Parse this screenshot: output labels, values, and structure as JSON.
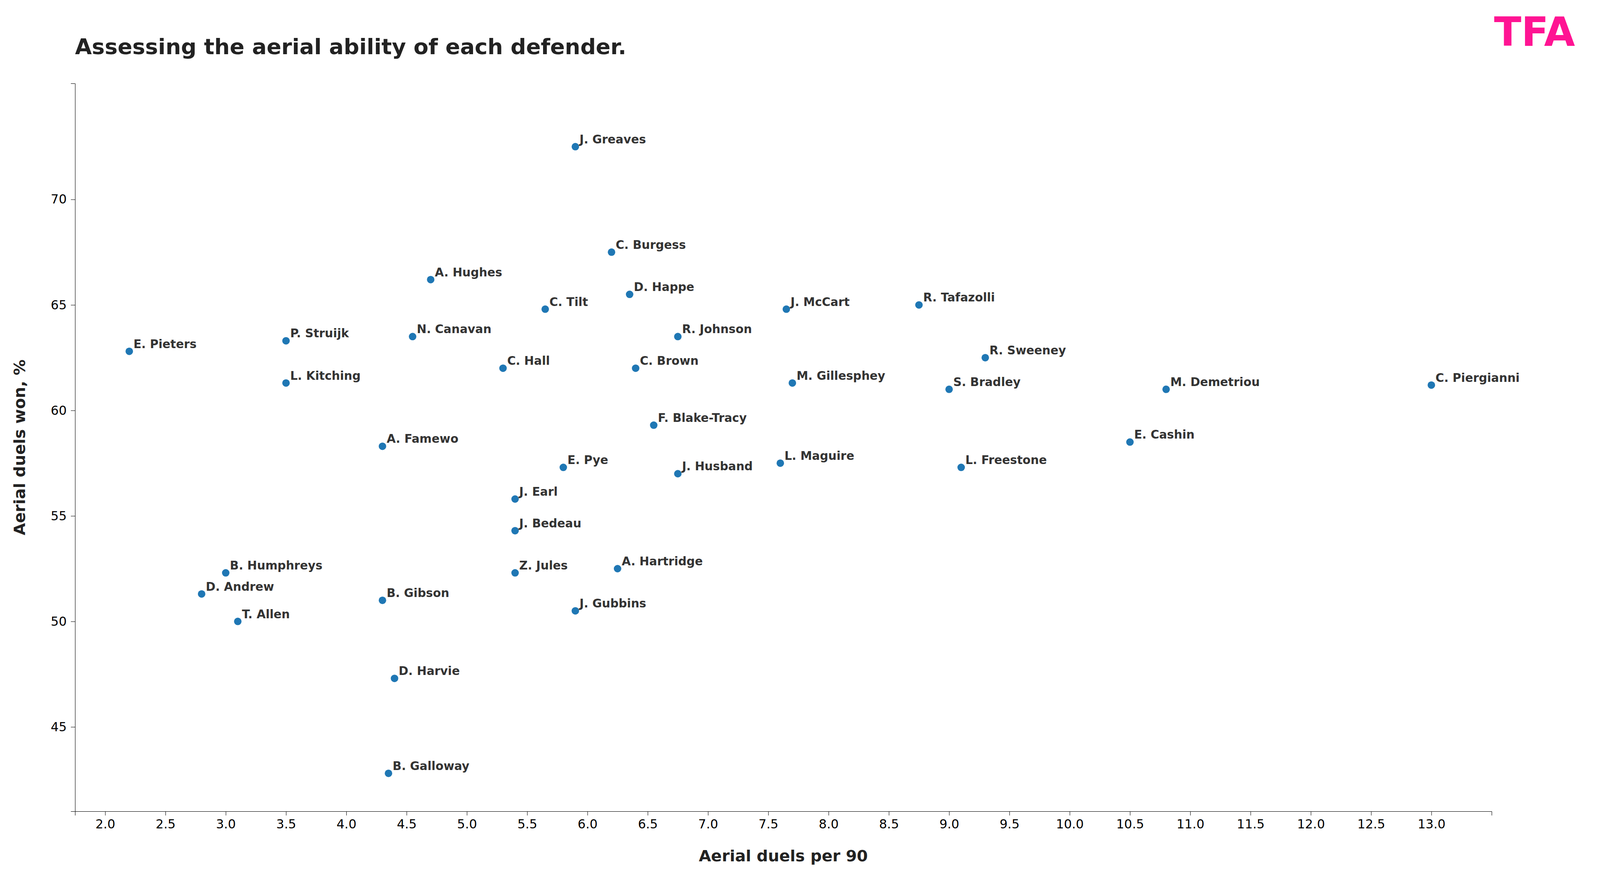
{
  "chart_data": {
    "type": "scatter",
    "title": "Assessing the aerial ability of each defender.",
    "x_label": "Aerial duels per 90",
    "y_label": "Aerial duels won, %",
    "annotations": [
      {
        "text": "TFA",
        "color": "#FF1493"
      }
    ],
    "grid": false,
    "xlim": [
      1.75,
      13.5
    ],
    "ylim": [
      41.0,
      75.5
    ],
    "xticks": [
      {
        "value": 2.0,
        "label": "2.0"
      },
      2.5,
      {
        "value": 3.0,
        "label": "3.0"
      },
      3.5,
      {
        "value": 4.0,
        "label": "4.0"
      },
      4.5,
      {
        "value": 5.0,
        "label": "5.0"
      },
      5.5,
      {
        "value": 6.0,
        "label": "6.0"
      },
      6.5,
      {
        "value": 7.0,
        "label": "7.0"
      },
      7.5,
      {
        "value": 8.0,
        "label": "8.0"
      },
      8.5,
      {
        "value": 9.0,
        "label": "9.0"
      },
      9.5,
      {
        "value": 10.0,
        "label": "10.0"
      },
      10.5,
      {
        "value": 11.0,
        "label": "11.0"
      },
      11.5,
      {
        "value": 12.0,
        "label": "12.0"
      },
      12.5,
      {
        "value": 13.0,
        "label": "13.0"
      }
    ],
    "yticks": [
      45,
      50,
      55,
      60,
      65,
      70
    ],
    "labels": [
      "J. Greaves",
      "C. Burgess",
      "A. Hughes",
      "D. Happe",
      "C. Tilt",
      "R. Tafazolli",
      "N. Canavan",
      "J. McCart",
      "R. Johnson",
      "P. Struijk",
      "C. Hall",
      "R. Sweeney",
      "C. Brown",
      "M. Gillesphey",
      "E. Pieters",
      "L. Kitching",
      "S. Bradley",
      "M. Demetriou",
      "F. Blake-Tracy",
      "A. Famewo",
      "E. Pye",
      "J. Husband",
      "L. Maguire",
      "L. Freestone",
      "E. Cashin",
      "C. Piergianni",
      "J. Earl",
      "J. Bedeau",
      "Z. Jules",
      "J. Gubbins",
      "A. Hartridge",
      "B. Humphreys",
      "D. Andrew",
      "T. Allen",
      "B. Gibson",
      "D. Harvie",
      "B. Galloway"
    ],
    "x": [
      5.9,
      6.2,
      4.7,
      6.35,
      5.65,
      8.75,
      4.55,
      7.65,
      6.75,
      3.5,
      5.3,
      9.3,
      6.4,
      7.7,
      2.2,
      3.5,
      9.0,
      10.8,
      6.55,
      4.3,
      5.8,
      6.75,
      7.6,
      9.1,
      10.5,
      13.0,
      5.4,
      5.4,
      5.4,
      5.9,
      6.25,
      3.0,
      2.8,
      3.1,
      4.3,
      4.4,
      4.35
    ],
    "values": [
      72.5,
      67.5,
      66.2,
      65.5,
      64.8,
      65.0,
      63.5,
      64.8,
      63.5,
      63.3,
      62.0,
      62.5,
      62.0,
      61.3,
      62.8,
      61.3,
      61.0,
      61.0,
      59.3,
      58.3,
      57.3,
      57.0,
      57.5,
      57.3,
      58.5,
      61.2,
      55.8,
      54.3,
      52.3,
      50.5,
      52.5,
      52.3,
      51.3,
      50.0,
      51.0,
      47.3,
      42.8
    ]
  }
}
